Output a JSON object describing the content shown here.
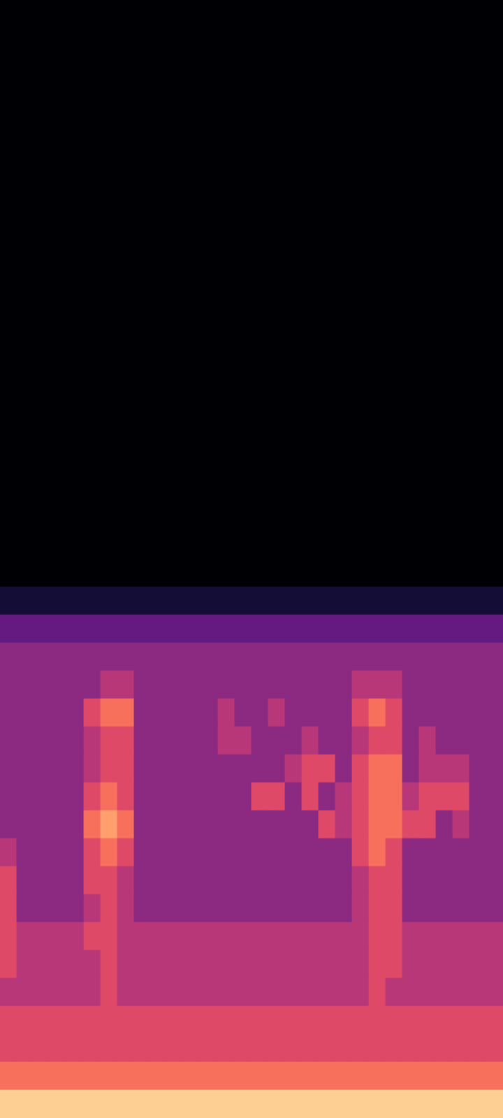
{
  "chart_data": {
    "type": "heatmap",
    "tick_labels": false,
    "zlim": [
      0,
      10
    ],
    "cells": [
      [
        0,
        0,
        0,
        0,
        0,
        0,
        0,
        0,
        0,
        0,
        0,
        0,
        0,
        0,
        0,
        0,
        0,
        0,
        0,
        0,
        0,
        0,
        0,
        0,
        0,
        0,
        0,
        0,
        0,
        0
      ],
      [
        0,
        0,
        0,
        0,
        0,
        0,
        0,
        0,
        0,
        0,
        0,
        0,
        0,
        0,
        0,
        0,
        0,
        0,
        0,
        0,
        0,
        0,
        0,
        0,
        0,
        0,
        0,
        0,
        0,
        0
      ],
      [
        0,
        0,
        0,
        0,
        0,
        0,
        0,
        0,
        0,
        0,
        0,
        0,
        0,
        0,
        0,
        0,
        0,
        0,
        0,
        0,
        0,
        0,
        0,
        0,
        0,
        0,
        0,
        0,
        0,
        0
      ],
      [
        0,
        0,
        0,
        0,
        0,
        0,
        0,
        0,
        0,
        0,
        0,
        0,
        0,
        0,
        0,
        0,
        0,
        0,
        0,
        0,
        0,
        0,
        0,
        0,
        0,
        0,
        0,
        0,
        0,
        0
      ],
      [
        0,
        0,
        0,
        0,
        0,
        0,
        0,
        0,
        0,
        0,
        0,
        0,
        0,
        0,
        0,
        0,
        0,
        0,
        0,
        0,
        0,
        0,
        0,
        0,
        0,
        0,
        0,
        0,
        0,
        0
      ],
      [
        0,
        0,
        0,
        0,
        0,
        0,
        0,
        0,
        0,
        0,
        0,
        0,
        0,
        0,
        0,
        0,
        0,
        0,
        0,
        0,
        0,
        0,
        0,
        0,
        0,
        0,
        0,
        0,
        0,
        0
      ],
      [
        0,
        0,
        0,
        0,
        0,
        0,
        0,
        0,
        0,
        0,
        0,
        0,
        0,
        0,
        0,
        0,
        0,
        0,
        0,
        0,
        0,
        0,
        0,
        0,
        0,
        0,
        0,
        0,
        0,
        0
      ],
      [
        0,
        0,
        0,
        0,
        0,
        0,
        0,
        0,
        0,
        0,
        0,
        0,
        0,
        0,
        0,
        0,
        0,
        0,
        0,
        0,
        0,
        0,
        0,
        0,
        0,
        0,
        0,
        0,
        0,
        0
      ],
      [
        0,
        0,
        0,
        0,
        0,
        0,
        0,
        0,
        0,
        0,
        0,
        0,
        0,
        0,
        0,
        0,
        0,
        0,
        0,
        0,
        0,
        0,
        0,
        0,
        0,
        0,
        0,
        0,
        0,
        0
      ],
      [
        0,
        0,
        0,
        0,
        0,
        0,
        0,
        0,
        0,
        0,
        0,
        0,
        0,
        0,
        0,
        0,
        0,
        0,
        0,
        0,
        0,
        0,
        0,
        0,
        0,
        0,
        0,
        0,
        0,
        0
      ],
      [
        0,
        0,
        0,
        0,
        0,
        0,
        0,
        0,
        0,
        0,
        0,
        0,
        0,
        0,
        0,
        0,
        0,
        0,
        0,
        0,
        0,
        0,
        0,
        0,
        0,
        0,
        0,
        0,
        0,
        0
      ],
      [
        0,
        0,
        0,
        0,
        0,
        0,
        0,
        0,
        0,
        0,
        0,
        0,
        0,
        0,
        0,
        0,
        0,
        0,
        0,
        0,
        0,
        0,
        0,
        0,
        0,
        0,
        0,
        0,
        0,
        0
      ],
      [
        0,
        0,
        0,
        0,
        0,
        0,
        0,
        0,
        0,
        0,
        0,
        0,
        0,
        0,
        0,
        0,
        0,
        0,
        0,
        0,
        0,
        0,
        0,
        0,
        0,
        0,
        0,
        0,
        0,
        0
      ],
      [
        0,
        0,
        0,
        0,
        0,
        0,
        0,
        0,
        0,
        0,
        0,
        0,
        0,
        0,
        0,
        0,
        0,
        0,
        0,
        0,
        0,
        0,
        0,
        0,
        0,
        0,
        0,
        0,
        0,
        0
      ],
      [
        0,
        0,
        0,
        0,
        0,
        0,
        0,
        0,
        0,
        0,
        0,
        0,
        0,
        0,
        0,
        0,
        0,
        0,
        0,
        0,
        0,
        0,
        0,
        0,
        0,
        0,
        0,
        0,
        0,
        0
      ],
      [
        0,
        0,
        0,
        0,
        0,
        0,
        0,
        0,
        0,
        0,
        0,
        0,
        0,
        0,
        0,
        0,
        0,
        0,
        0,
        0,
        0,
        0,
        0,
        0,
        0,
        0,
        0,
        0,
        0,
        0
      ],
      [
        0,
        0,
        0,
        0,
        0,
        0,
        0,
        0,
        0,
        0,
        0,
        0,
        0,
        0,
        0,
        0,
        0,
        0,
        0,
        0,
        0,
        0,
        0,
        0,
        0,
        0,
        0,
        0,
        0,
        0
      ],
      [
        0,
        0,
        0,
        0,
        0,
        0,
        0,
        0,
        0,
        0,
        0,
        0,
        0,
        0,
        0,
        0,
        0,
        0,
        0,
        0,
        0,
        0,
        0,
        0,
        0,
        0,
        0,
        0,
        0,
        0
      ],
      [
        0,
        0,
        0,
        0,
        0,
        0,
        0,
        0,
        0,
        0,
        0,
        0,
        0,
        0,
        0,
        0,
        0,
        0,
        0,
        0,
        0,
        0,
        0,
        0,
        0,
        0,
        0,
        0,
        0,
        0
      ],
      [
        0,
        0,
        0,
        0,
        0,
        0,
        0,
        0,
        0,
        0,
        0,
        0,
        0,
        0,
        0,
        0,
        0,
        0,
        0,
        0,
        0,
        0,
        0,
        0,
        0,
        0,
        0,
        0,
        0,
        0
      ],
      [
        0,
        0,
        0,
        0,
        0,
        0,
        0,
        0,
        0,
        0,
        0,
        0,
        0,
        0,
        0,
        0,
        0,
        0,
        0,
        0,
        0,
        0,
        0,
        0,
        0,
        0,
        0,
        0,
        0,
        0
      ],
      [
        1,
        1,
        1,
        1,
        1,
        1,
        1,
        1,
        1,
        1,
        1,
        1,
        1,
        1,
        1,
        1,
        1,
        1,
        1,
        1,
        1,
        1,
        1,
        1,
        1,
        1,
        1,
        1,
        1,
        1
      ],
      [
        3,
        3,
        3,
        3,
        3,
        3,
        3,
        3,
        3,
        3,
        3,
        3,
        3,
        3,
        3,
        3,
        3,
        3,
        3,
        3,
        3,
        3,
        3,
        3,
        3,
        3,
        3,
        3,
        3,
        3
      ],
      [
        4,
        4,
        4,
        4,
        4,
        4,
        4,
        4,
        4,
        4,
        4,
        4,
        4,
        4,
        4,
        4,
        4,
        4,
        4,
        4,
        4,
        4,
        4,
        4,
        4,
        4,
        4,
        4,
        4,
        4
      ],
      [
        4,
        4,
        4,
        4,
        4,
        4,
        5,
        5,
        4,
        4,
        4,
        4,
        4,
        4,
        4,
        4,
        4,
        4,
        4,
        4,
        4,
        5,
        5,
        5,
        4,
        4,
        4,
        4,
        4,
        4
      ],
      [
        4,
        4,
        4,
        4,
        4,
        6,
        7,
        7,
        4,
        4,
        4,
        4,
        4,
        5,
        4,
        4,
        5,
        4,
        4,
        4,
        4,
        6,
        7,
        6,
        4,
        4,
        4,
        4,
        4,
        4
      ],
      [
        4,
        4,
        4,
        4,
        4,
        5,
        6,
        6,
        4,
        4,
        4,
        4,
        4,
        5,
        5,
        4,
        4,
        4,
        5,
        4,
        4,
        5,
        6,
        6,
        4,
        5,
        4,
        4,
        4,
        4
      ],
      [
        4,
        4,
        4,
        4,
        4,
        5,
        6,
        6,
        4,
        4,
        4,
        4,
        4,
        4,
        4,
        4,
        4,
        5,
        6,
        6,
        4,
        6,
        7,
        7,
        4,
        5,
        5,
        5,
        4,
        4
      ],
      [
        4,
        4,
        4,
        4,
        4,
        6,
        7,
        6,
        4,
        4,
        4,
        4,
        4,
        4,
        4,
        6,
        6,
        4,
        6,
        4,
        5,
        6,
        7,
        7,
        5,
        6,
        6,
        6,
        4,
        4
      ],
      [
        4,
        4,
        4,
        4,
        4,
        7,
        8,
        7,
        4,
        4,
        4,
        4,
        4,
        4,
        4,
        4,
        4,
        4,
        4,
        6,
        5,
        6,
        7,
        7,
        6,
        6,
        4,
        5,
        4,
        4
      ],
      [
        5,
        4,
        4,
        4,
        4,
        6,
        7,
        6,
        4,
        4,
        4,
        4,
        4,
        4,
        4,
        4,
        4,
        4,
        4,
        4,
        4,
        6,
        7,
        6,
        4,
        4,
        4,
        4,
        4,
        4
      ],
      [
        6,
        4,
        4,
        4,
        4,
        6,
        6,
        5,
        4,
        4,
        4,
        4,
        4,
        4,
        4,
        4,
        4,
        4,
        4,
        4,
        4,
        5,
        6,
        6,
        4,
        4,
        4,
        4,
        4,
        4
      ],
      [
        6,
        4,
        4,
        4,
        4,
        5,
        6,
        5,
        4,
        4,
        4,
        4,
        4,
        4,
        4,
        4,
        4,
        4,
        4,
        4,
        4,
        5,
        6,
        6,
        4,
        4,
        4,
        4,
        4,
        4
      ],
      [
        6,
        5,
        5,
        5,
        5,
        6,
        6,
        5,
        5,
        5,
        5,
        5,
        5,
        5,
        5,
        5,
        5,
        5,
        5,
        5,
        5,
        5,
        6,
        6,
        5,
        5,
        5,
        5,
        5,
        5
      ],
      [
        6,
        5,
        5,
        5,
        5,
        5,
        6,
        5,
        5,
        5,
        5,
        5,
        5,
        5,
        5,
        5,
        5,
        5,
        5,
        5,
        5,
        5,
        6,
        6,
        5,
        5,
        5,
        5,
        5,
        5
      ],
      [
        5,
        5,
        5,
        5,
        5,
        5,
        6,
        5,
        5,
        5,
        5,
        5,
        5,
        5,
        5,
        5,
        5,
        5,
        5,
        5,
        5,
        5,
        6,
        5,
        5,
        5,
        5,
        5,
        5,
        5
      ],
      [
        6,
        6,
        6,
        6,
        6,
        6,
        6,
        6,
        6,
        6,
        6,
        6,
        6,
        6,
        6,
        6,
        6,
        6,
        6,
        6,
        6,
        6,
        6,
        6,
        6,
        6,
        6,
        6,
        6,
        6
      ],
      [
        6,
        6,
        6,
        6,
        6,
        6,
        6,
        6,
        6,
        6,
        6,
        6,
        6,
        6,
        6,
        6,
        6,
        6,
        6,
        6,
        6,
        6,
        6,
        6,
        6,
        6,
        6,
        6,
        6,
        6
      ],
      [
        7,
        7,
        7,
        7,
        7,
        7,
        7,
        7,
        7,
        7,
        7,
        7,
        7,
        7,
        7,
        7,
        7,
        7,
        7,
        7,
        7,
        7,
        7,
        7,
        7,
        7,
        7,
        7,
        7,
        7
      ],
      [
        9,
        9,
        9,
        9,
        9,
        9,
        9,
        9,
        9,
        9,
        9,
        9,
        9,
        9,
        9,
        9,
        9,
        9,
        9,
        9,
        9,
        9,
        9,
        9,
        9,
        9,
        9,
        9,
        9,
        9
      ]
    ]
  }
}
